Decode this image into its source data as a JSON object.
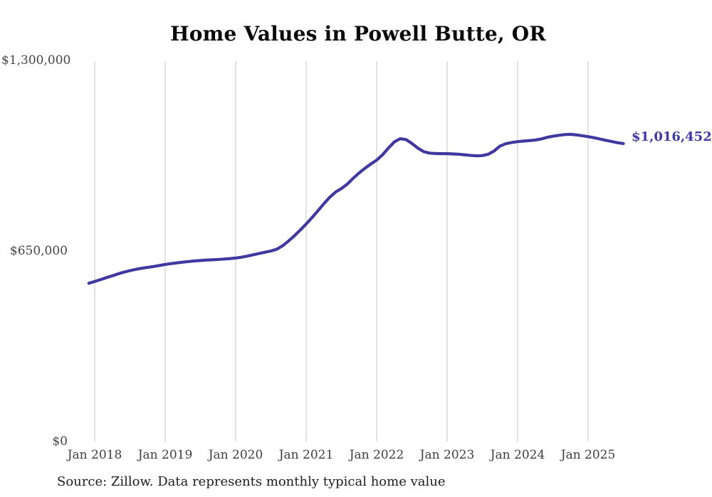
{
  "chart_data": {
    "type": "line",
    "title": "Home Values in Powell Butte, OR",
    "xlabel": "",
    "ylabel": "",
    "ylim": [
      0,
      1300000
    ],
    "grid": "vertical-only",
    "legend": "none",
    "line_color": "#3f38a0",
    "grid_color": "#c6c6c6",
    "y_ticks": [
      "$0",
      "$650,000",
      "$1,300,000"
    ],
    "x_tick_labels": [
      "Jan 2018",
      "Jan 2019",
      "Jan 2020",
      "Jan 2021",
      "Jan 2022",
      "Jan 2023",
      "Jan 2024",
      "Jan 2025"
    ],
    "end_label": "$1,016,452",
    "series": [
      {
        "name": "Typical home value",
        "frequency": "monthly",
        "start": "2017-12",
        "end": "2025-07",
        "values": [
          540000,
          546000,
          552500,
          559000,
          565500,
          572000,
          578000,
          583000,
          587500,
          591000,
          594000,
          597000,
          600500,
          604000,
          607000,
          609500,
          612000,
          614000,
          616000,
          617500,
          619000,
          620000,
          621000,
          622500,
          624000,
          626000,
          629000,
          632500,
          637000,
          641500,
          646000,
          650000,
          656000,
          668000,
          684000,
          702000,
          721500,
          742000,
          764000,
          787000,
          811000,
          833000,
          851000,
          863000,
          878000,
          898000,
          916000,
          932000,
          946500,
          960000,
          978000,
          1001000,
          1022000,
          1033000,
          1030000,
          1017000,
          1001000,
          989000,
          984000,
          982500,
          982000,
          982000,
          981000,
          980000,
          978000,
          976000,
          974500,
          975500,
          980000,
          991000,
          1008000,
          1016000,
          1020000,
          1023000,
          1025000,
          1026500,
          1028500,
          1032000,
          1037500,
          1041500,
          1044500,
          1047000,
          1048000,
          1046000,
          1043000,
          1040000,
          1036500,
          1032000,
          1027500,
          1023500,
          1019500,
          1016452
        ]
      }
    ]
  },
  "source_note": "Source: Zillow. Data represents monthly typical home value"
}
